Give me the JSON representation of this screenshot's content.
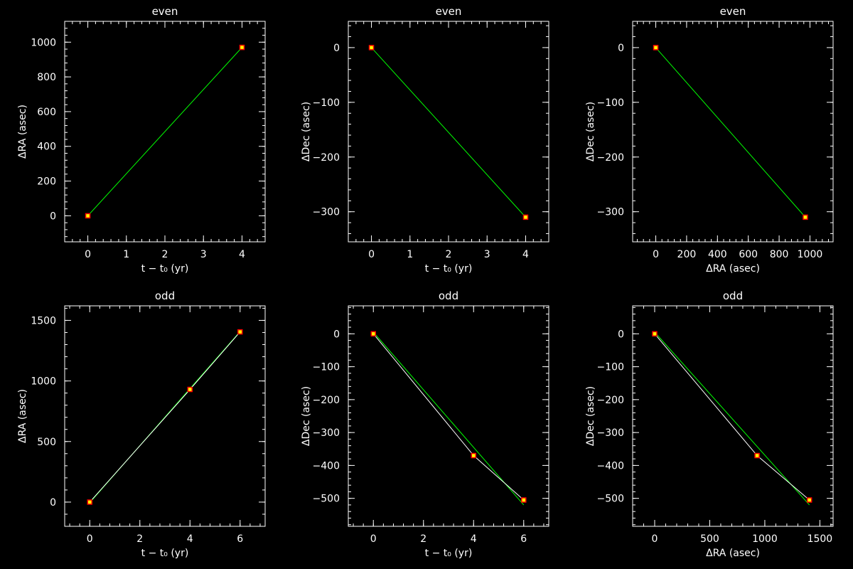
{
  "colors": {
    "background": "#000000",
    "axes": "#ffffff",
    "fit_line": "#00ff00",
    "data_line": "#ffffff",
    "marker_edge": "#ff0000",
    "marker_fill": "#ffff00"
  },
  "chart_data": [
    {
      "type": "line",
      "title": "even",
      "xlabel": "t − t₀ (yr)",
      "ylabel": "ΔRA (asec)",
      "xlim": [
        -0.6,
        4.6
      ],
      "ylim": [
        -150,
        1120
      ],
      "xticks": [
        0,
        1,
        2,
        3,
        4
      ],
      "xtick_labels": [
        "0",
        "1",
        "2",
        "3",
        "4"
      ],
      "yticks": [
        0,
        200,
        400,
        600,
        800,
        1000
      ],
      "ytick_labels": [
        "0",
        "200",
        "400",
        "600",
        "800",
        "1000"
      ],
      "series": [
        {
          "x": [
            0,
            4
          ],
          "y": [
            0,
            970
          ]
        }
      ],
      "fit": {
        "x": [
          0,
          4
        ],
        "y": [
          0,
          970
        ]
      }
    },
    {
      "type": "line",
      "title": "even",
      "xlabel": "t − t₀ (yr)",
      "ylabel": "ΔDec (asec)",
      "xlim": [
        -0.6,
        4.6
      ],
      "ylim": [
        -355,
        48
      ],
      "xticks": [
        0,
        1,
        2,
        3,
        4
      ],
      "xtick_labels": [
        "0",
        "1",
        "2",
        "3",
        "4"
      ],
      "yticks": [
        0,
        -100,
        -200,
        -300
      ],
      "ytick_labels": [
        "0",
        "−100",
        "−200",
        "−300"
      ],
      "series": [
        {
          "x": [
            0,
            4
          ],
          "y": [
            0,
            -310
          ]
        }
      ],
      "fit": {
        "x": [
          0,
          4
        ],
        "y": [
          0,
          -310
        ]
      }
    },
    {
      "type": "line",
      "title": "even",
      "xlabel": "ΔRA (asec)",
      "ylabel": "ΔDec (asec)",
      "xlim": [
        -150,
        1150
      ],
      "ylim": [
        -355,
        48
      ],
      "xticks": [
        0,
        200,
        400,
        600,
        800,
        1000
      ],
      "xtick_labels": [
        "0",
        "200",
        "400",
        "600",
        "800",
        "1000"
      ],
      "yticks": [
        0,
        -100,
        -200,
        -300
      ],
      "ytick_labels": [
        "0",
        "−100",
        "−200",
        "−300"
      ],
      "series": [
        {
          "x": [
            0,
            970
          ],
          "y": [
            0,
            -310
          ]
        }
      ],
      "fit": {
        "x": [
          0,
          970
        ],
        "y": [
          0,
          -310
        ]
      }
    },
    {
      "type": "line",
      "title": "odd",
      "xlabel": "t − t₀ (yr)",
      "ylabel": "ΔRA (asec)",
      "xlim": [
        -1,
        7
      ],
      "ylim": [
        -200,
        1620
      ],
      "xticks": [
        0,
        2,
        4,
        6
      ],
      "xtick_labels": [
        "0",
        "2",
        "4",
        "6"
      ],
      "yticks": [
        0,
        500,
        1000,
        1500
      ],
      "ytick_labels": [
        "0",
        "500",
        "1000",
        "1500"
      ],
      "series": [
        {
          "x": [
            0,
            4,
            6
          ],
          "y": [
            0,
            930,
            1405
          ]
        }
      ],
      "fit": {
        "x": [
          0,
          6
        ],
        "y": [
          -5,
          1408
        ]
      }
    },
    {
      "type": "line",
      "title": "odd",
      "xlabel": "t − t₀ (yr)",
      "ylabel": "ΔDec (asec)",
      "xlim": [
        -1,
        7
      ],
      "ylim": [
        -585,
        85
      ],
      "xticks": [
        0,
        2,
        4,
        6
      ],
      "xtick_labels": [
        "0",
        "2",
        "4",
        "6"
      ],
      "yticks": [
        0,
        -100,
        -200,
        -300,
        -400,
        -500
      ],
      "ytick_labels": [
        "0",
        "−100",
        "−200",
        "−300",
        "−400",
        "−500"
      ],
      "series": [
        {
          "x": [
            0,
            4,
            6
          ],
          "y": [
            0,
            -370,
            -505
          ]
        }
      ],
      "fit": {
        "x": [
          0,
          6
        ],
        "y": [
          5,
          -520
        ]
      }
    },
    {
      "type": "line",
      "title": "odd",
      "xlabel": "ΔRA (asec)",
      "ylabel": "ΔDec (asec)",
      "xlim": [
        -200,
        1620
      ],
      "ylim": [
        -585,
        85
      ],
      "xticks": [
        0,
        500,
        1000,
        1500
      ],
      "xtick_labels": [
        "0",
        "500",
        "1000",
        "1500"
      ],
      "yticks": [
        0,
        -100,
        -200,
        -300,
        -400,
        -500
      ],
      "ytick_labels": [
        "0",
        "−100",
        "−200",
        "−300",
        "−400",
        "−500"
      ],
      "series": [
        {
          "x": [
            0,
            930,
            1405
          ],
          "y": [
            0,
            -370,
            -505
          ]
        }
      ],
      "fit": {
        "x": [
          0,
          1405
        ],
        "y": [
          5,
          -520
        ]
      }
    }
  ]
}
